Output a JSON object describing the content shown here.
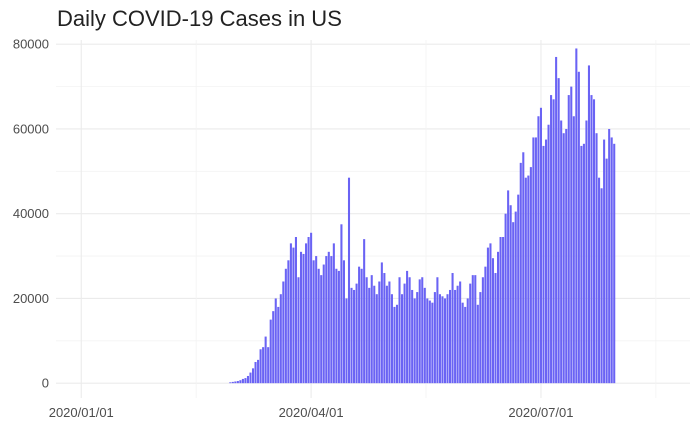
{
  "chart_data": {
    "type": "bar",
    "title": "Daily COVID-19 Cases in US",
    "xlabel": "",
    "ylabel": "",
    "ylim": [
      -3500,
      81000
    ],
    "y_ticks": [
      0,
      20000,
      40000,
      60000,
      80000
    ],
    "y_tick_labels": [
      "0",
      "20000",
      "40000",
      "60000",
      "80000"
    ],
    "x_ticks": [
      "2020/01/01",
      "2020/04/01",
      "2020/07/01"
    ],
    "x_range": [
      "2019-12-22",
      "2020-08-29"
    ],
    "start_date": "2020-02-29",
    "bar_color": "#6a63f4",
    "grid": true,
    "legend": "none",
    "values": [
      200,
      300,
      400,
      500,
      700,
      1000,
      1200,
      1700,
      2500,
      3500,
      5000,
      5500,
      8000,
      8500,
      11000,
      8500,
      15000,
      17000,
      20000,
      18000,
      21000,
      24000,
      27000,
      29000,
      33000,
      32000,
      34500,
      25000,
      31000,
      30500,
      33000,
      34500,
      35500,
      29000,
      30000,
      27000,
      25500,
      28000,
      30000,
      31000,
      30000,
      33000,
      27000,
      26500,
      37500,
      29000,
      20000,
      48500,
      22500,
      22000,
      23500,
      27500,
      27000,
      34000,
      25000,
      22500,
      25500,
      23000,
      21000,
      24000,
      28500,
      26000,
      23000,
      24000,
      21000,
      18000,
      18500,
      25000,
      21000,
      23500,
      26500,
      25000,
      22000,
      20000,
      21500,
      24500,
      25000,
      22500,
      20000,
      19500,
      19000,
      21500,
      25000,
      21000,
      20500,
      20000,
      21000,
      22000,
      26000,
      22000,
      23000,
      24000,
      19000,
      18000,
      20000,
      23500,
      25500,
      25500,
      18500,
      21500,
      25000,
      27500,
      32000,
      33000,
      29500,
      26000,
      31000,
      34500,
      34500,
      40000,
      45500,
      42000,
      38000,
      40500,
      44500,
      52000,
      54500,
      48500,
      49000,
      51000,
      58000,
      58000,
      63000,
      65000,
      56000,
      57500,
      61000,
      68000,
      67000,
      77000,
      72000,
      62000,
      59000,
      60000,
      68000,
      70000,
      63000,
      79000,
      73500,
      56000,
      56500,
      62000,
      75000,
      68000,
      67000,
      59000,
      48500,
      46000,
      57500,
      53000,
      60000,
      58000,
      56500
    ]
  }
}
